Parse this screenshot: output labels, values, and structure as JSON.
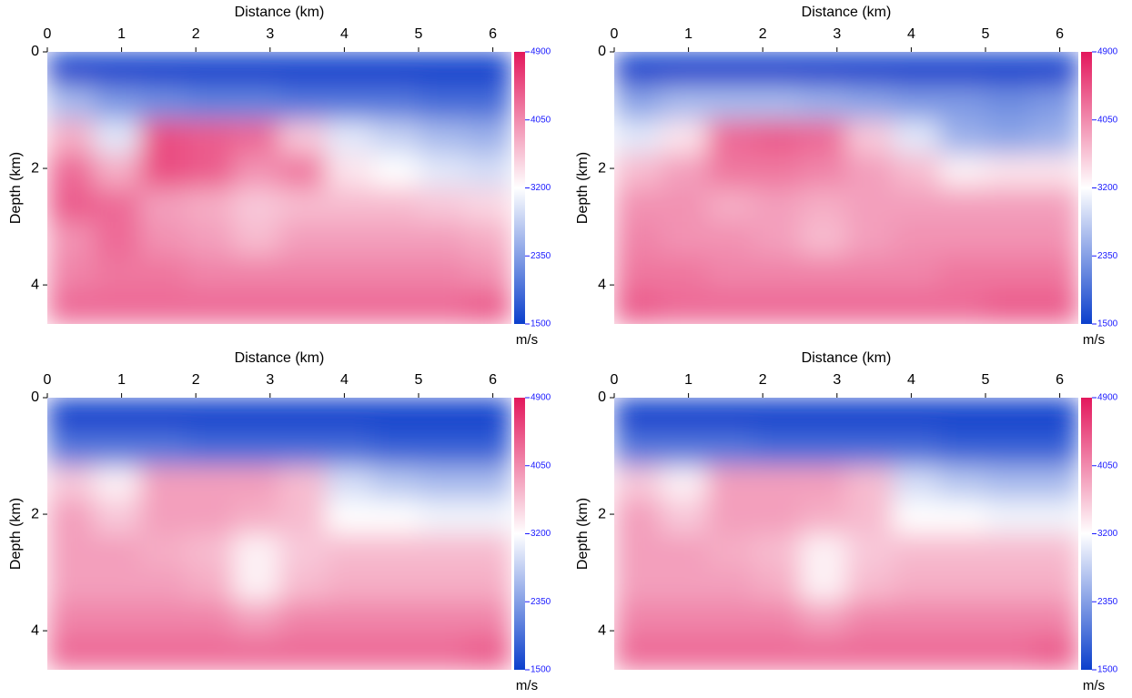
{
  "chart_data": [
    {
      "type": "heatmap",
      "xlabel": "Distance (km)",
      "ylabel": "Depth (km)",
      "xlim": [
        0,
        6.25
      ],
      "ylim": [
        4.67,
        0
      ],
      "xticks": [
        0,
        1,
        2,
        3,
        4,
        5,
        6
      ],
      "yticks": [
        0,
        2,
        4
      ],
      "clim": [
        1500,
        4900
      ],
      "cticks": [
        1500,
        2350,
        3200,
        4050,
        4900
      ],
      "clabel": "m/s",
      "colors": [
        "#0b3fcc",
        "#ffffff",
        "#e3175c"
      ],
      "z": [
        [
          1500,
          1500,
          1500,
          1500,
          1500,
          1500,
          1500,
          1500,
          1500,
          1500
        ],
        [
          2600,
          2300,
          2200,
          2100,
          2100,
          2000,
          2000,
          2000,
          1900,
          1900
        ],
        [
          3800,
          3000,
          4500,
          4400,
          4300,
          3600,
          3000,
          2800,
          2600,
          2500
        ],
        [
          4300,
          3800,
          4500,
          4400,
          4000,
          4200,
          3400,
          3200,
          3000,
          2900
        ],
        [
          4400,
          4300,
          3900,
          3800,
          3600,
          3700,
          3700,
          3700,
          3600,
          3500
        ],
        [
          4000,
          4300,
          4000,
          3900,
          3700,
          3900,
          3900,
          3900,
          3900,
          3800
        ],
        [
          4100,
          4200,
          4200,
          4100,
          4100,
          4100,
          4100,
          4100,
          4100,
          4000
        ],
        [
          4300,
          4300,
          4300,
          4300,
          4300,
          4300,
          4300,
          4300,
          4300,
          4400
        ]
      ]
    },
    {
      "type": "heatmap",
      "xlabel": "Distance (km)",
      "ylabel": "Depth (km)",
      "xlim": [
        0,
        6.25
      ],
      "ylim": [
        4.67,
        0
      ],
      "xticks": [
        0,
        1,
        2,
        3,
        4,
        5,
        6
      ],
      "yticks": [
        0,
        2,
        4
      ],
      "clim": [
        1500,
        4900
      ],
      "cticks": [
        1500,
        2350,
        3200,
        4050,
        4900
      ],
      "clabel": "m/s",
      "colors": [
        "#0b3fcc",
        "#ffffff",
        "#e3175c"
      ],
      "z": [
        [
          1500,
          1500,
          1500,
          1500,
          1500,
          1500,
          1500,
          1500,
          1500,
          1500
        ],
        [
          2400,
          2600,
          2600,
          2600,
          2500,
          2400,
          2300,
          2300,
          2200,
          2300
        ],
        [
          3000,
          3400,
          4300,
          4400,
          4300,
          3600,
          3000,
          2500,
          2400,
          2500
        ],
        [
          3700,
          3900,
          4200,
          4200,
          4100,
          3900,
          3700,
          3300,
          3400,
          3400
        ],
        [
          4000,
          4000,
          3800,
          3900,
          3800,
          3900,
          3900,
          3900,
          3900,
          3900
        ],
        [
          4100,
          4000,
          4000,
          3900,
          3700,
          3900,
          4000,
          4000,
          4000,
          4000
        ],
        [
          4200,
          4200,
          4100,
          4100,
          4100,
          4100,
          4100,
          4200,
          4200,
          4200
        ],
        [
          4400,
          4300,
          4300,
          4300,
          4300,
          4300,
          4300,
          4300,
          4400,
          4400
        ]
      ]
    },
    {
      "type": "heatmap",
      "xlabel": "Distance (km)",
      "ylabel": "Depth (km)",
      "xlim": [
        0,
        6.25
      ],
      "ylim": [
        4.67,
        0
      ],
      "xticks": [
        0,
        1,
        2,
        3,
        4,
        5,
        6
      ],
      "yticks": [
        0,
        2,
        4
      ],
      "clim": [
        1500,
        4900
      ],
      "cticks": [
        1500,
        2350,
        3200,
        4050,
        4900
      ],
      "clabel": "m/s",
      "colors": [
        "#0b3fcc",
        "#ffffff",
        "#e3175c"
      ],
      "z": [
        [
          1500,
          1500,
          1500,
          1500,
          1500,
          1500,
          1500,
          1500,
          1500,
          1500
        ],
        [
          2000,
          2000,
          2000,
          1900,
          1900,
          1900,
          1900,
          1800,
          1800,
          1800
        ],
        [
          3600,
          3300,
          3900,
          3900,
          3900,
          3700,
          2900,
          2700,
          2600,
          2600
        ],
        [
          3900,
          3600,
          3900,
          3900,
          3800,
          3700,
          3200,
          3200,
          3100,
          3100
        ],
        [
          3900,
          3900,
          3800,
          3700,
          3300,
          3600,
          3700,
          3700,
          3700,
          3700
        ],
        [
          3900,
          3900,
          3900,
          3800,
          3300,
          3700,
          3800,
          3800,
          3800,
          3800
        ],
        [
          4100,
          4100,
          4100,
          4100,
          3900,
          4100,
          4100,
          4100,
          4100,
          4100
        ],
        [
          4300,
          4300,
          4300,
          4300,
          4300,
          4300,
          4300,
          4300,
          4300,
          4400
        ]
      ]
    },
    {
      "type": "heatmap",
      "xlabel": "Distance (km)",
      "ylabel": "Depth (km)",
      "xlim": [
        0,
        6.25
      ],
      "ylim": [
        4.67,
        0
      ],
      "xticks": [
        0,
        1,
        2,
        3,
        4,
        5,
        6
      ],
      "yticks": [
        0,
        2,
        4
      ],
      "clim": [
        1500,
        4900
      ],
      "cticks": [
        1500,
        2350,
        3200,
        4050,
        4900
      ],
      "clabel": "m/s",
      "colors": [
        "#0b3fcc",
        "#ffffff",
        "#e3175c"
      ],
      "z": [
        [
          1500,
          1500,
          1500,
          1500,
          1500,
          1500,
          1500,
          1500,
          1500,
          1500
        ],
        [
          2000,
          2000,
          2000,
          1900,
          1900,
          1900,
          1900,
          1800,
          1800,
          1800
        ],
        [
          3600,
          3300,
          3900,
          3900,
          3900,
          3700,
          2900,
          2700,
          2600,
          2600
        ],
        [
          3900,
          3600,
          3900,
          3900,
          3800,
          3700,
          3200,
          3200,
          3100,
          3100
        ],
        [
          3900,
          3900,
          3800,
          3700,
          3300,
          3600,
          3700,
          3700,
          3700,
          3700
        ],
        [
          3900,
          3900,
          3900,
          3800,
          3300,
          3700,
          3800,
          3800,
          3800,
          3800
        ],
        [
          4100,
          4100,
          4100,
          4100,
          3900,
          4100,
          4100,
          4100,
          4100,
          4100
        ],
        [
          4300,
          4300,
          4300,
          4300,
          4300,
          4300,
          4300,
          4300,
          4300,
          4400
        ]
      ]
    }
  ]
}
